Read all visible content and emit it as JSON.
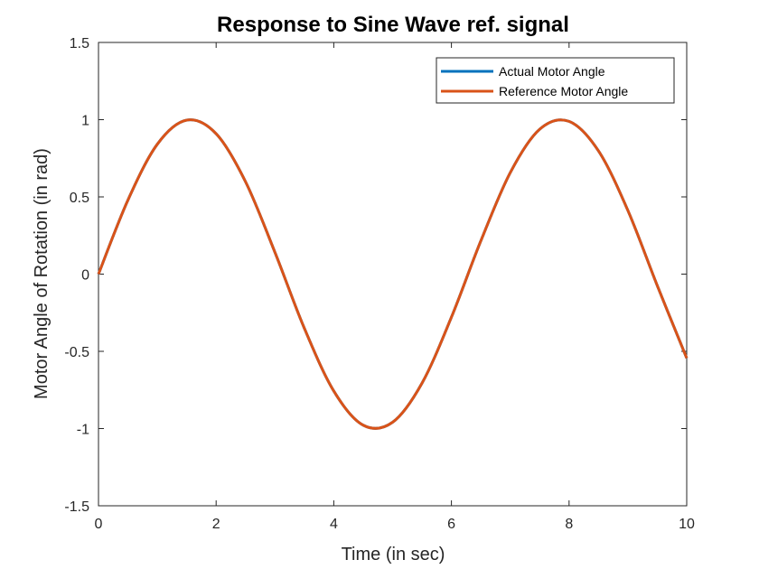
{
  "chart_data": {
    "type": "line",
    "title": "Response to Sine Wave ref. signal",
    "xlabel": "Time (in sec)",
    "ylabel": "Motor Angle of Rotation (in rad)",
    "xlim": [
      0,
      10
    ],
    "ylim": [
      -1.5,
      1.5
    ],
    "xticks": [
      0,
      2,
      4,
      6,
      8,
      10
    ],
    "xtick_labels": [
      "0",
      "2",
      "4",
      "6",
      "8",
      "10"
    ],
    "yticks": [
      -1.5,
      -1,
      -0.5,
      0,
      0.5,
      1,
      1.5
    ],
    "ytick_labels": [
      "-1.5",
      "-1",
      "-0.5",
      "0",
      "0.5",
      "1",
      "1.5"
    ],
    "grid": false,
    "legend_position": "top-right",
    "x": [
      0,
      0.5,
      1,
      1.5,
      2,
      2.5,
      3,
      3.5,
      4,
      4.5,
      5,
      5.5,
      6,
      6.5,
      7,
      7.5,
      8,
      8.5,
      9,
      9.5,
      10
    ],
    "series": [
      {
        "name": "Actual Motor Angle",
        "color": "#0072BD",
        "values": [
          0,
          0.479,
          0.841,
          0.997,
          0.909,
          0.598,
          0.141,
          -0.351,
          -0.757,
          -0.978,
          -0.959,
          -0.706,
          -0.279,
          0.215,
          0.657,
          0.938,
          0.989,
          0.798,
          0.412,
          -0.075,
          -0.544
        ]
      },
      {
        "name": "Reference Motor Angle",
        "color": "#D95319",
        "values": [
          0,
          0.479,
          0.841,
          0.997,
          0.909,
          0.598,
          0.141,
          -0.351,
          -0.757,
          -0.978,
          -0.959,
          -0.706,
          -0.279,
          0.215,
          0.657,
          0.938,
          0.989,
          0.798,
          0.412,
          -0.075,
          -0.544
        ]
      }
    ]
  }
}
